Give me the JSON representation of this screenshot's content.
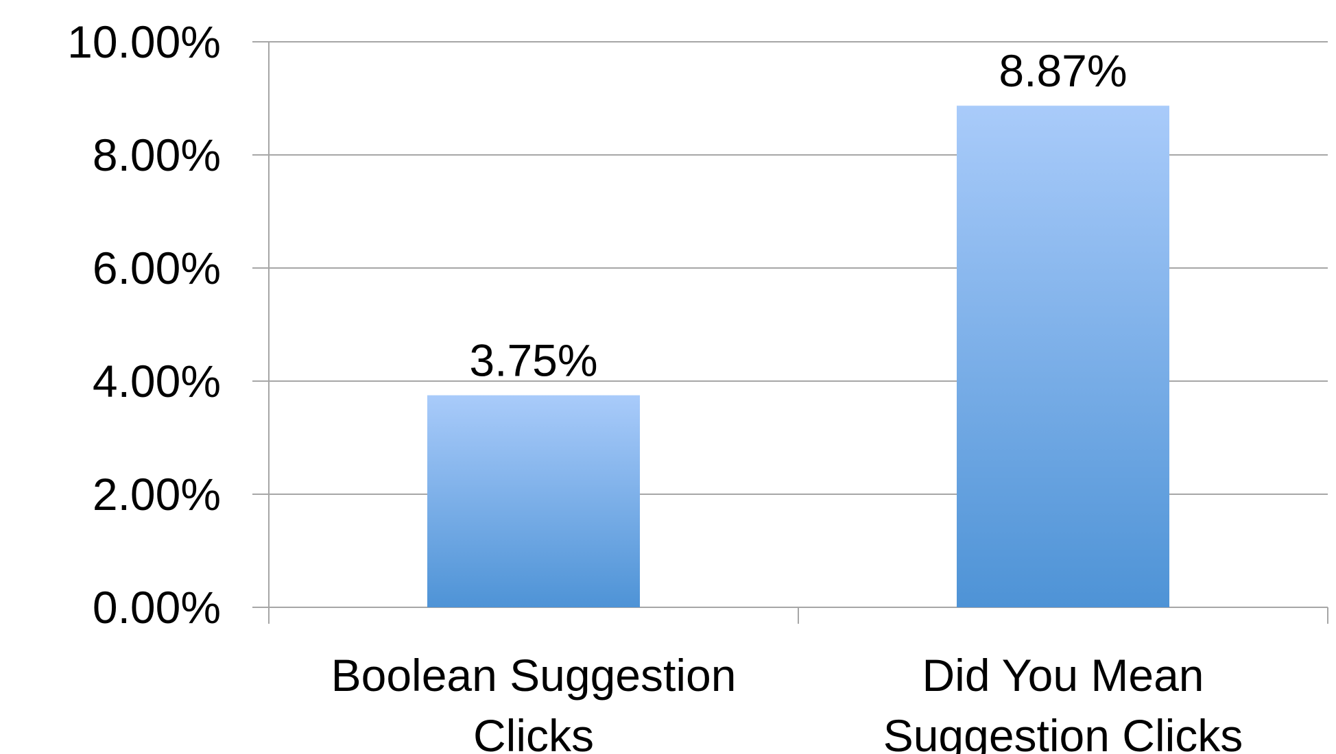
{
  "chart_data": {
    "type": "bar",
    "categories": [
      "Boolean Suggestion Clicks",
      "Did You Mean Suggestion Clicks"
    ],
    "category_label_lines": [
      [
        "Boolean Suggestion",
        "Clicks"
      ],
      [
        "Did You Mean",
        "Suggestion Clicks"
      ]
    ],
    "values": [
      3.75,
      8.87
    ],
    "data_labels": [
      "3.75%",
      "8.87%"
    ],
    "ylim": [
      0,
      10
    ],
    "yticks": [
      0,
      2,
      4,
      6,
      8,
      10
    ],
    "ytick_labels": [
      "0.00%",
      "2.00%",
      "4.00%",
      "6.00%",
      "8.00%",
      "10.00%"
    ],
    "title": "",
    "xlabel": "",
    "ylabel": "",
    "grid": true,
    "legend": "none",
    "colors": {
      "bar_top": "#A9CBFA",
      "bar_bottom": "#4E93D6",
      "grid": "#A6A6A6",
      "axis": "#A6A6A6",
      "text": "#000000"
    }
  }
}
